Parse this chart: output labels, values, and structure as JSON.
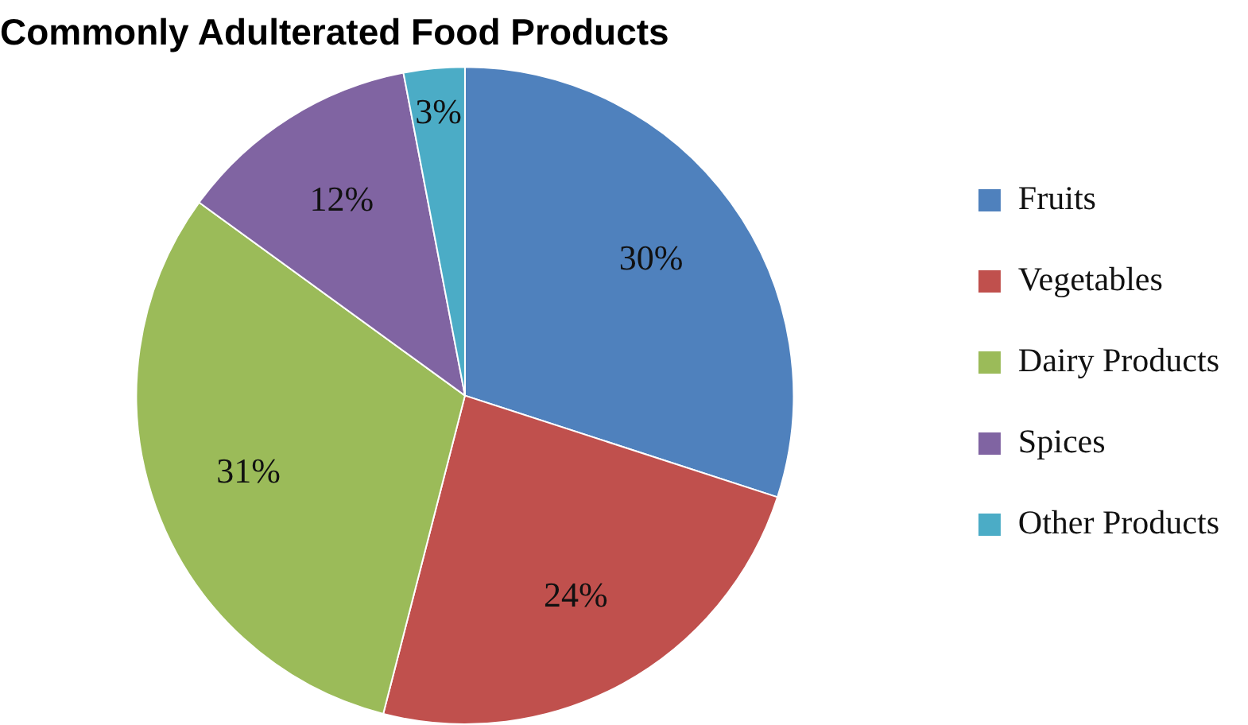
{
  "chart_data": {
    "type": "pie",
    "title": "Commonly Adulterated Food Products",
    "categories": [
      "Fruits",
      "Vegetables",
      "Dairy Products",
      "Spices",
      "Other Products"
    ],
    "values": [
      30,
      24,
      31,
      12,
      3
    ],
    "colors": [
      "#4f81bd",
      "#c0504d",
      "#9bbb59",
      "#8064a2",
      "#4bacc6"
    ],
    "value_labels": [
      "30%",
      "24%",
      "31%",
      "12%",
      "3%"
    ],
    "legend": "right"
  }
}
